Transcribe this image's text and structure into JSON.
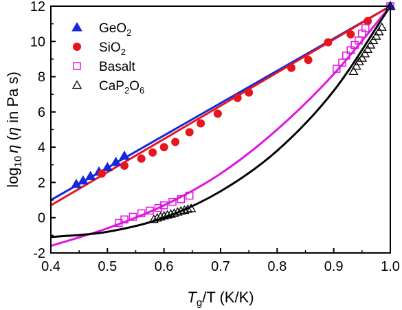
{
  "chart_data": {
    "type": "scatter",
    "title": "",
    "xlabel": {
      "main": "T",
      "sub": "g",
      "after": "/T (K/K)"
    },
    "ylabel": {
      "pre": "log",
      "sub": "10",
      "greek": "η",
      "post": " (",
      "greek2": "η",
      "tail": " in Pa s)"
    },
    "xlim": [
      0.4,
      1.0
    ],
    "ylim": [
      -2,
      12
    ],
    "xticks": [
      0.4,
      0.5,
      0.6,
      0.7,
      0.8,
      0.9,
      1.0
    ],
    "xtick_labels": [
      "0.4",
      "0.5",
      "0.6",
      "0.7",
      "0.8",
      "0.9",
      "1.0"
    ],
    "yticks": [
      -2,
      0,
      2,
      4,
      6,
      8,
      10,
      12
    ],
    "ytick_labels": [
      "-2",
      "0",
      "2",
      "4",
      "6",
      "8",
      "10",
      "12"
    ],
    "grid": false,
    "legend_position": "top-left",
    "legend": [
      {
        "name": "GeO",
        "sub": "2",
        "after": "",
        "marker": "filled-triangle",
        "color": "#1428dc"
      },
      {
        "name": "SiO",
        "sub": "2",
        "after": "",
        "marker": "filled-circle",
        "color": "#e8141e"
      },
      {
        "name": "Basalt",
        "sub": "",
        "after": "",
        "marker": "open-square",
        "color": "#e014e0"
      },
      {
        "name": "CaP",
        "sub": "2",
        "after": "O",
        "sub2": "6",
        "marker": "open-triangle",
        "color": "#000000"
      }
    ],
    "series": [
      {
        "name": "GeO2",
        "marker": "filled-triangle",
        "color": "#1428dc",
        "points": [
          [
            0.445,
            1.9
          ],
          [
            0.457,
            2.1
          ],
          [
            0.47,
            2.35
          ],
          [
            0.485,
            2.6
          ],
          [
            0.5,
            2.85
          ],
          [
            0.515,
            3.15
          ],
          [
            0.53,
            3.5
          ],
          [
            1.0,
            12.0
          ]
        ],
        "fit": {
          "type": "line",
          "x": [
            0.4,
            1.0
          ],
          "y": [
            1.0,
            12.0
          ],
          "color": "#1428dc"
        }
      },
      {
        "name": "SiO2",
        "marker": "filled-circle",
        "color": "#e8141e",
        "points": [
          [
            0.49,
            2.5
          ],
          [
            0.53,
            2.95
          ],
          [
            0.56,
            3.35
          ],
          [
            0.58,
            3.7
          ],
          [
            0.6,
            4.0
          ],
          [
            0.62,
            4.3
          ],
          [
            0.645,
            4.85
          ],
          [
            0.665,
            5.35
          ],
          [
            0.695,
            5.9
          ],
          [
            0.73,
            6.8
          ],
          [
            0.75,
            7.1
          ],
          [
            0.825,
            8.5
          ],
          [
            0.855,
            8.95
          ],
          [
            0.89,
            9.95
          ],
          [
            0.93,
            10.4
          ],
          [
            0.96,
            11.15
          ]
        ],
        "fit": {
          "type": "line",
          "x": [
            0.4,
            1.0
          ],
          "y": [
            0.7,
            12.0
          ],
          "color": "#e8141e"
        }
      },
      {
        "name": "Basalt",
        "marker": "open-square",
        "color": "#e014e0",
        "points": [
          [
            0.52,
            -0.3
          ],
          [
            0.53,
            -0.1
          ],
          [
            0.545,
            0.05
          ],
          [
            0.56,
            0.25
          ],
          [
            0.575,
            0.4
          ],
          [
            0.59,
            0.55
          ],
          [
            0.6,
            0.7
          ],
          [
            0.615,
            0.9
          ],
          [
            0.63,
            1.05
          ],
          [
            0.645,
            1.25
          ],
          [
            0.905,
            8.45
          ],
          [
            0.915,
            8.8
          ],
          [
            0.922,
            9.2
          ],
          [
            0.93,
            9.5
          ],
          [
            0.937,
            9.8
          ],
          [
            0.944,
            10.05
          ],
          [
            0.95,
            10.45
          ],
          [
            0.956,
            10.75
          ],
          [
            1.0,
            12.0
          ]
        ],
        "fit": {
          "type": "curve",
          "x": [
            0.4,
            0.5,
            0.6,
            0.7,
            0.8,
            0.9,
            1.0
          ],
          "y": [
            -1.6,
            -0.6,
            0.7,
            2.5,
            5.0,
            8.15,
            12.0
          ],
          "color": "#e014e0"
        }
      },
      {
        "name": "CaP2O6",
        "marker": "open-triangle",
        "color": "#000000",
        "points": [
          [
            0.582,
            -0.1
          ],
          [
            0.588,
            -0.02
          ],
          [
            0.594,
            0.05
          ],
          [
            0.6,
            0.1
          ],
          [
            0.606,
            0.15
          ],
          [
            0.612,
            0.2
          ],
          [
            0.618,
            0.25
          ],
          [
            0.624,
            0.32
          ],
          [
            0.63,
            0.38
          ],
          [
            0.636,
            0.42
          ],
          [
            0.642,
            0.48
          ],
          [
            0.648,
            0.52
          ],
          [
            0.935,
            8.3
          ],
          [
            0.94,
            8.6
          ],
          [
            0.945,
            8.85
          ],
          [
            0.95,
            9.05
          ],
          [
            0.955,
            9.3
          ],
          [
            0.96,
            9.55
          ],
          [
            0.965,
            9.8
          ],
          [
            0.97,
            10.05
          ],
          [
            0.975,
            10.3
          ],
          [
            0.98,
            10.55
          ],
          [
            0.985,
            10.8
          ],
          [
            1.0,
            12.0
          ]
        ],
        "fit": {
          "type": "curve",
          "x": [
            0.4,
            0.5,
            0.6,
            0.7,
            0.8,
            0.9,
            1.0
          ],
          "y": [
            -1.1,
            -0.8,
            0.0,
            1.5,
            3.8,
            7.2,
            12.0
          ],
          "color": "#000000"
        }
      }
    ]
  }
}
